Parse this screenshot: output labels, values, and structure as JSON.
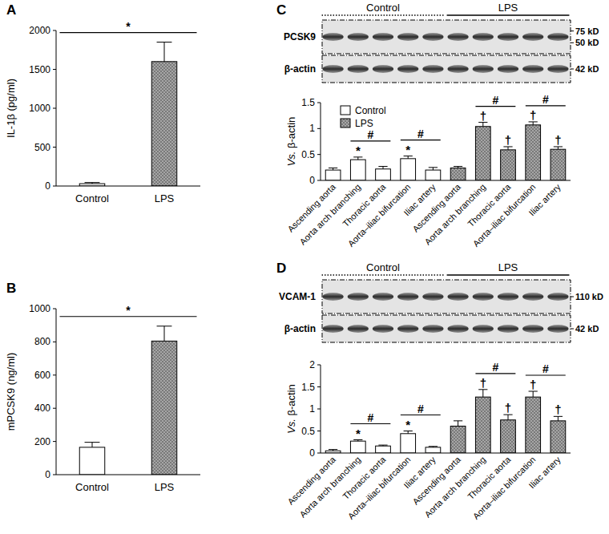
{
  "chart_data": [
    {
      "type": "bar",
      "panel_label": "A",
      "y_label": "IL-1β (pg/ml)",
      "categories": [
        "Control",
        "LPS"
      ],
      "values": [
        30,
        1600
      ],
      "errors": [
        15,
        250
      ],
      "colors": [
        "#ffffff",
        "#a6a6a6"
      ],
      "ylim": [
        0,
        2000
      ],
      "yticks": [
        0,
        500,
        1000,
        1500,
        2000
      ],
      "brackets": [
        {
          "text": "*",
          "from": 0,
          "to": 1
        }
      ]
    },
    {
      "type": "bar",
      "panel_label": "B",
      "y_label": "mPCSK9 (ng/ml)",
      "categories": [
        "Control",
        "LPS"
      ],
      "values": [
        165,
        805
      ],
      "errors": [
        30,
        90
      ],
      "colors": [
        "#ffffff",
        "#a6a6a6"
      ],
      "ylim": [
        0,
        1000
      ],
      "yticks": [
        0,
        200,
        400,
        600,
        800,
        1000
      ],
      "brackets": [
        {
          "text": "*",
          "from": 0,
          "to": 1
        }
      ]
    },
    {
      "type": "bar",
      "panel_label": "C",
      "y_label": "Vs. β-actin",
      "categories": [
        "Ascending aorta",
        "Aorta arch branching",
        "Thoracic aorta",
        "Aorta–iliac bifurcation",
        "Iliac artery",
        "Ascending aorta",
        "Aorta arch branching",
        "Thoracic aorta",
        "Aorta–iliac bifurcation",
        "Iliac artery"
      ],
      "series": [
        {
          "name": "Control",
          "color": "#ffffff",
          "values": [
            0.2,
            0.4,
            0.22,
            0.42,
            0.2,
            null,
            null,
            null,
            null,
            null
          ],
          "errors": [
            0.04,
            0.05,
            0.05,
            0.05,
            0.05,
            null,
            null,
            null,
            null,
            null
          ]
        },
        {
          "name": "LPS",
          "color": "#a6a6a6",
          "values": [
            null,
            null,
            null,
            null,
            null,
            0.24,
            1.04,
            0.59,
            1.07,
            0.6
          ],
          "errors": [
            null,
            null,
            null,
            null,
            null,
            0.03,
            0.08,
            0.06,
            0.06,
            0.05
          ]
        }
      ],
      "ylim": [
        0,
        1.5
      ],
      "yticks": [
        0,
        0.5,
        1,
        1.5
      ],
      "legend": "upper left",
      "annotations": [
        {
          "text": "*",
          "series": 0,
          "index": 1
        },
        {
          "text": "*",
          "series": 0,
          "index": 3
        },
        {
          "text": "†",
          "series": 1,
          "index": 6
        },
        {
          "text": "†",
          "series": 1,
          "index": 7
        },
        {
          "text": "†",
          "series": 1,
          "index": 8
        },
        {
          "text": "†",
          "series": 1,
          "index": 9
        }
      ],
      "brackets": [
        {
          "text": "#",
          "from": 1,
          "to": 2
        },
        {
          "text": "#",
          "from": 3,
          "to": 4
        },
        {
          "text": "#",
          "from": 6,
          "to": 7
        },
        {
          "text": "#",
          "from": 8,
          "to": 9
        }
      ],
      "blot": {
        "groups": [
          {
            "label": "Control",
            "from": 0,
            "to": 4,
            "line_style": "dotted"
          },
          {
            "label": "LPS",
            "from": 5,
            "to": 9,
            "line_style": "solid"
          }
        ],
        "rows": [
          {
            "label": "PCSK9",
            "sizes": [
              "75 kD",
              "50 kD"
            ]
          },
          {
            "label": "β-actin",
            "sizes": [
              "42 kD"
            ]
          }
        ]
      }
    },
    {
      "type": "bar",
      "panel_label": "D",
      "y_label": "Vs. β-actin",
      "categories": [
        "Ascending aorta",
        "Aorta arch branching",
        "Thoracic aorta",
        "Aorta–iliac bifurcation",
        "Iliac artery",
        "Ascending aorta",
        "Aorta arch branching",
        "Thoracic aorta",
        "Aorta–iliac bifurcation",
        "Iliac artery"
      ],
      "series": [
        {
          "name": "Control",
          "color": "#ffffff",
          "values": [
            0.05,
            0.27,
            0.16,
            0.44,
            0.13,
            null,
            null,
            null,
            null,
            null
          ],
          "errors": [
            0.03,
            0.03,
            0.02,
            0.06,
            0.02,
            null,
            null,
            null,
            null,
            null
          ]
        },
        {
          "name": "LPS",
          "color": "#a6a6a6",
          "values": [
            null,
            null,
            null,
            null,
            null,
            0.61,
            1.27,
            0.75,
            1.27,
            0.73
          ],
          "errors": [
            null,
            null,
            null,
            null,
            null,
            0.12,
            0.17,
            0.12,
            0.13,
            0.1
          ]
        }
      ],
      "ylim": [
        0,
        2
      ],
      "yticks": [
        0,
        0.5,
        1,
        1.5,
        2
      ],
      "annotations": [
        {
          "text": "*",
          "series": 0,
          "index": 1
        },
        {
          "text": "*",
          "series": 0,
          "index": 3
        },
        {
          "text": "†",
          "series": 1,
          "index": 6
        },
        {
          "text": "†",
          "series": 1,
          "index": 7
        },
        {
          "text": "†",
          "series": 1,
          "index": 8
        },
        {
          "text": "†",
          "series": 1,
          "index": 9
        }
      ],
      "brackets": [
        {
          "text": "#",
          "from": 1,
          "to": 2
        },
        {
          "text": "#",
          "from": 3,
          "to": 4
        },
        {
          "text": "#",
          "from": 6,
          "to": 7
        },
        {
          "text": "#",
          "from": 8,
          "to": 9
        }
      ],
      "blot": {
        "groups": [
          {
            "label": "Control",
            "from": 0,
            "to": 4,
            "line_style": "dotted"
          },
          {
            "label": "LPS",
            "from": 5,
            "to": 9,
            "line_style": "solid"
          }
        ],
        "rows": [
          {
            "label": "VCAM-1",
            "sizes": [
              "110 kD"
            ]
          },
          {
            "label": "β-actin",
            "sizes": [
              "42 kD"
            ]
          }
        ]
      }
    }
  ]
}
